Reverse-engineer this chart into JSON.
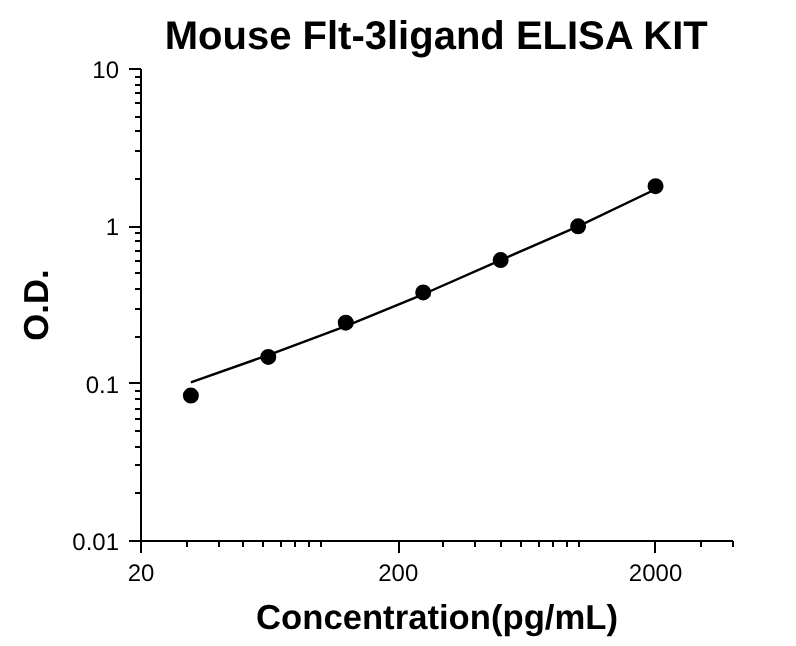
{
  "chart_data": {
    "type": "scatter",
    "title": "Mouse Flt-3ligand ELISA KIT",
    "xlabel": "Concentration(pg/mL)",
    "ylabel": "O.D.",
    "x": [
      31.25,
      62.5,
      125,
      250,
      500,
      1000,
      2000
    ],
    "series": [
      {
        "color": "#000000",
        "marker": "circle",
        "values": [
          0.084,
          0.148,
          0.244,
          0.38,
          0.61,
          1.0,
          1.8
        ]
      },
      {
        "type": "line",
        "color": "#000000",
        "marker": "none",
        "line_style": "solid",
        "x": [
          31.25,
          62.5,
          125,
          250,
          500,
          1000,
          2000
        ],
        "values": [
          0.102,
          0.152,
          0.232,
          0.37,
          0.61,
          1.0,
          1.72
        ]
      }
    ],
    "log": "xy",
    "xlim": [
      20,
      4000
    ],
    "ylim": [
      0.01,
      10
    ],
    "xticks": [
      20,
      200,
      2000
    ],
    "yticks": [
      0.01,
      0.1,
      1,
      10
    ],
    "grid": false
  }
}
